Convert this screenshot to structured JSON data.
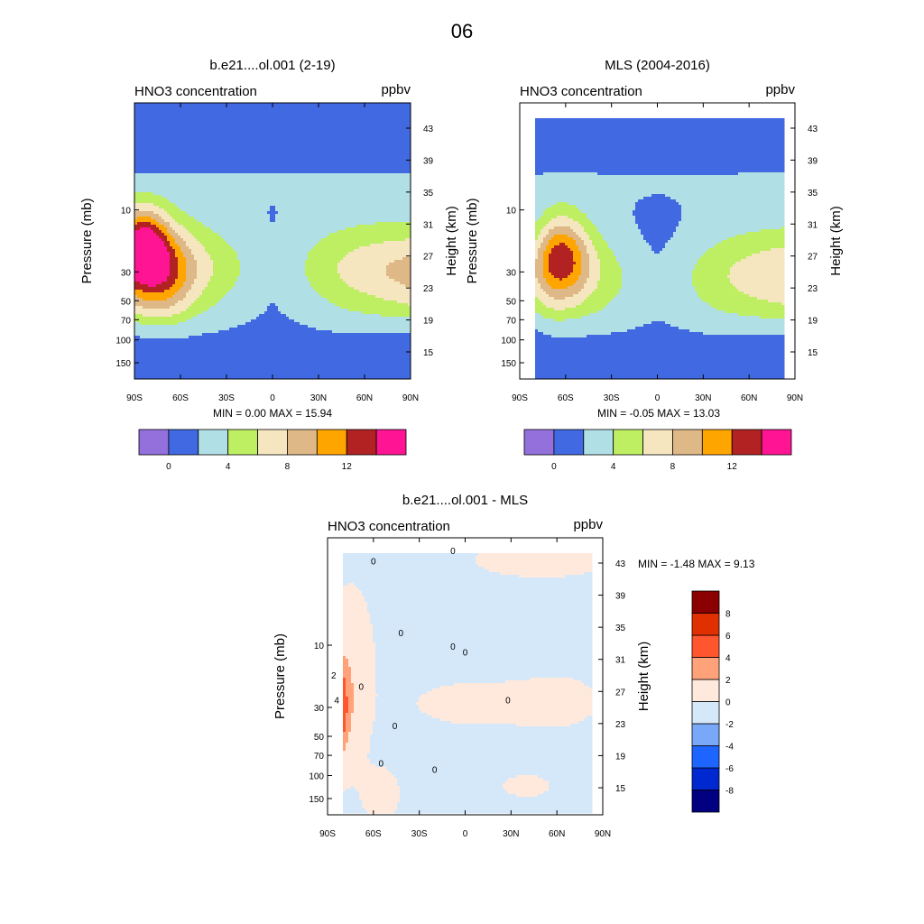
{
  "page": {
    "title": "06"
  },
  "colors": {
    "abs_levels": [
      "#9370DB",
      "#4169E1",
      "#B0E0E6",
      "#BEEE62",
      "#F5E6C0",
      "#DEB887",
      "#FFA500",
      "#B22222",
      "#FF1493"
    ],
    "diff_levels": [
      "#000080",
      "#0028D0",
      "#1E64FF",
      "#7AA8F8",
      "#D4E8FA",
      "#FFE9DC",
      "#FFA27A",
      "#FF5630",
      "#E03000",
      "#8B0000"
    ]
  },
  "chart_data": [
    {
      "id": "model",
      "type": "heatmap",
      "title": "b.e21....ol.001 (2-19)",
      "subtitle_left": "HNO3 concentration",
      "subtitle_right": "ppbv",
      "xlabel": "",
      "ylabel": "Pressure (mb)",
      "ylabel_right": "Height (km)",
      "x_ticks": [
        "90S",
        "60S",
        "30S",
        "0",
        "30N",
        "60N",
        "90N"
      ],
      "x_range": [
        -90,
        90
      ],
      "y_ticks": [
        "10",
        "30",
        "50",
        "70",
        "100",
        "150"
      ],
      "y_ticks_values": [
        10,
        30,
        50,
        70,
        100,
        150
      ],
      "y_range": [
        200,
        1.5
      ],
      "height_ticks": [
        "43",
        "39",
        "35",
        "31",
        "27",
        "23",
        "19",
        "15"
      ],
      "min": "0.00",
      "max": "15.94",
      "minmax_text": "MIN =   0.00  MAX =  15.94",
      "contour_levels": [
        0,
        2,
        4,
        6,
        8,
        10,
        12,
        14
      ],
      "colorbar_labels": [
        "0",
        "4",
        "8",
        "12"
      ]
    },
    {
      "id": "mls",
      "type": "heatmap",
      "title": "MLS (2004-2016)",
      "subtitle_left": "HNO3 concentration",
      "subtitle_right": "ppbv",
      "xlabel": "",
      "ylabel": "Pressure (mb)",
      "ylabel_right": "Height (km)",
      "x_ticks": [
        "90S",
        "60S",
        "30S",
        "0",
        "30N",
        "60N",
        "90N"
      ],
      "x_range": [
        -90,
        90
      ],
      "y_ticks": [
        "10",
        "30",
        "50",
        "70",
        "100",
        "150"
      ],
      "y_ticks_values": [
        10,
        30,
        50,
        70,
        100,
        150
      ],
      "y_range": [
        200,
        1.5
      ],
      "height_ticks": [
        "43",
        "39",
        "35",
        "31",
        "27",
        "23",
        "19",
        "15"
      ],
      "data_lat_range": [
        -80,
        82
      ],
      "min": "-0.05",
      "max": "13.03",
      "minmax_text": "MIN =  -0.05  MAX =  13.03",
      "contour_levels": [
        0,
        2,
        4,
        6,
        8,
        10,
        12,
        14
      ],
      "colorbar_labels": [
        "0",
        "4",
        "8",
        "12"
      ]
    },
    {
      "id": "diff",
      "type": "heatmap",
      "title": "b.e21....ol.001 - MLS",
      "subtitle_left": "HNO3 concentration",
      "subtitle_right": "ppbv",
      "xlabel": "",
      "ylabel": "Pressure (mb)",
      "ylabel_right": "Height (km)",
      "x_ticks": [
        "90S",
        "60S",
        "30S",
        "0",
        "30N",
        "60N",
        "90N"
      ],
      "x_range": [
        -90,
        90
      ],
      "y_ticks": [
        "10",
        "30",
        "50",
        "70",
        "100",
        "150"
      ],
      "y_ticks_values": [
        10,
        30,
        50,
        70,
        100,
        150
      ],
      "y_range": [
        200,
        1.5
      ],
      "height_ticks": [
        "43",
        "39",
        "35",
        "31",
        "27",
        "23",
        "19",
        "15"
      ],
      "data_lat_range": [
        -80,
        82
      ],
      "min": "-1.48",
      "max": "9.13",
      "minmax_text": "MIN =  -1.48  MAX =   9.13",
      "contour_levels": [
        -8,
        -6,
        -4,
        -2,
        0,
        2,
        4,
        6,
        8
      ],
      "colorbar_labels": [
        "8",
        "6",
        "4",
        "2",
        "0",
        "-2",
        "-4",
        "-6",
        "-8"
      ],
      "contour_labels": [
        "0",
        "0",
        "0",
        "0",
        "0",
        "0",
        "0",
        "0",
        "0",
        "0",
        "2",
        "4"
      ]
    }
  ]
}
